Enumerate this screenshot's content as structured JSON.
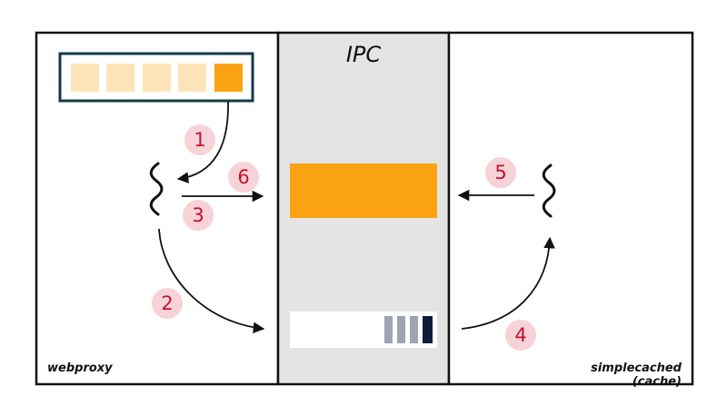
{
  "panels": {
    "left_label": "webproxy",
    "center_label": "IPC",
    "right_label": "simplecached (cache)"
  },
  "steps": [
    {
      "label": "1"
    },
    {
      "label": "2"
    },
    {
      "label": "3"
    },
    {
      "label": "4"
    },
    {
      "label": "5"
    },
    {
      "label": "6"
    }
  ],
  "colors": {
    "queue_empty": "#fde4b8",
    "queue_active": "#faa214",
    "queue_border": "#123a4a",
    "ipc_background": "#e4e4e4",
    "shared_memory": "#faa214",
    "queue_slot_gray": "#9ea4b0",
    "queue_slot_dark": "#0f1d3c",
    "badge_fill": "#f6d3d8",
    "badge_text": "#c8102e"
  },
  "icons": {
    "worker_threads": "thread-squiggle-icon"
  }
}
